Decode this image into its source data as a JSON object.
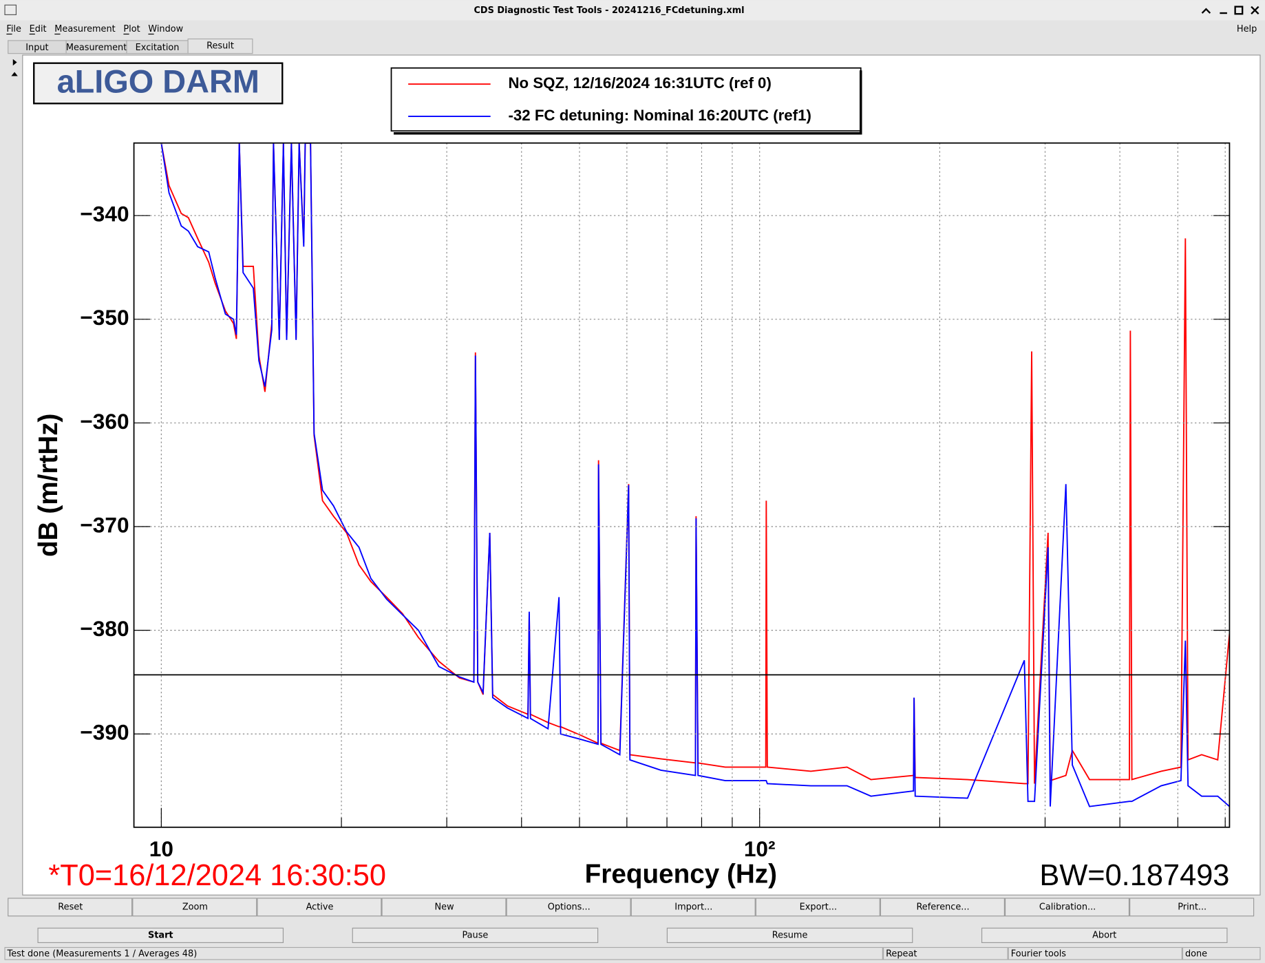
{
  "window": {
    "title": "CDS Diagnostic Test Tools - 20241216_FCdetuning.xml",
    "menus": [
      "File",
      "Edit",
      "Measurement",
      "Plot",
      "Window"
    ],
    "help": "Help",
    "tabs": [
      "Input",
      "Measurement",
      "Excitation",
      "Result"
    ],
    "buttons": [
      "Reset",
      "Zoom",
      "Active",
      "New",
      "Options...",
      "Import...",
      "Export...",
      "Reference...",
      "Calibration...",
      "Print..."
    ],
    "controls": [
      "Start",
      "Pause",
      "Resume",
      "Abort"
    ],
    "status": [
      "Test done (Measurements 1 / Averages 48)",
      "Repeat",
      "Fourier tools",
      "done"
    ]
  },
  "chart_data": {
    "type": "line",
    "title": "aLIGO DARM",
    "x_label": "Frequency (Hz)",
    "y_label": "dB (m/rtHz)",
    "annotations": [
      "*T0=16/12/2024 16:30:50",
      "BW=0.187493"
    ],
    "log_x": true,
    "grid": true,
    "xlim": [
      9,
      610
    ],
    "ylim": [
      -399,
      -333
    ],
    "xticks": [
      10,
      {
        "value": 100,
        "label": "10²"
      }
    ],
    "xminor": [
      20,
      30,
      40,
      50,
      60,
      70,
      80,
      90,
      200,
      300,
      400,
      500,
      600
    ],
    "yticks": [
      {
        "value": -340,
        "label": "−340"
      },
      {
        "value": -350,
        "label": "−350"
      },
      {
        "value": -360,
        "label": "−360"
      },
      {
        "value": -370,
        "label": "−370"
      },
      {
        "value": -380,
        "label": "−380"
      },
      {
        "value": -390,
        "label": "−390"
      }
    ],
    "hline": -384.3,
    "x": [
      10,
      10.3,
      10.8,
      11.1,
      11.5,
      12.0,
      12.3,
      12.8,
      13.2,
      13.35,
      13.5,
      13.7,
      14.25,
      14.56,
      14.9,
      15.3,
      15.4,
      15.75,
      16.0,
      16.2,
      16.5,
      16.8,
      17.0,
      17.3,
      17.4,
      17.76,
      18.0,
      18.6,
      19.4,
      20.4,
      21.4,
      22.4,
      23.8,
      25.3,
      26.9,
      29.1,
      31.5,
      33.3,
      33.5,
      33.8,
      34.5,
      35.4,
      35.8,
      37.9,
      41.0,
      41.2,
      41.4,
      44.3,
      46.2,
      46.5,
      50.1,
      53.7,
      53.8,
      54.3,
      58.4,
      60.4,
      60.7,
      68.4,
      78.1,
      78.3,
      78.9,
      87.6,
      102.4,
      102.6,
      103,
      121.8,
      140,
      153.5,
      180.8,
      181.2,
      182,
      222.6,
      277,
      280.9,
      284.9,
      288,
      303.4,
      306,
      325,
      333.2,
      356,
      415,
      416.5,
      419,
      469,
      506,
      514.7,
      520,
      548,
      583,
      610
    ],
    "series": [
      {
        "name": "No SQZ, 12/16/2024 16:31UTC (ref 0)",
        "color": "#ff0000",
        "values": [
          -333,
          -337.1,
          -339.8,
          -340.2,
          -342.2,
          -344.5,
          -346.5,
          -349.2,
          -350.4,
          -351.9,
          -333,
          -344.9,
          -344.9,
          -353.5,
          -357,
          -350.4,
          -333,
          -351.9,
          -333,
          -351.9,
          -333,
          -351.9,
          -333,
          -342.6,
          -333,
          -333,
          -361.2,
          -367.5,
          -369,
          -370.6,
          -373.7,
          -375.3,
          -376.8,
          -378.4,
          -380.7,
          -383,
          -384.6,
          -385,
          -353.2,
          -385,
          -386.2,
          -370.6,
          -386.2,
          -387.3,
          -388.1,
          -378.4,
          -388.1,
          -388.9,
          -389.3,
          -389.3,
          -390.1,
          -390.9,
          -363.6,
          -390.9,
          -391.6,
          -365.9,
          -392,
          -392.4,
          -392.8,
          -369,
          -392.8,
          -393.2,
          -393.2,
          -367.5,
          -393.2,
          -393.6,
          -393.2,
          -394.4,
          -394,
          -386.5,
          -394.2,
          -394.4,
          -394.8,
          -394.8,
          -353.1,
          -394.8,
          -370.6,
          -394.5,
          -394,
          -391.6,
          -394.4,
          -394.4,
          -351.1,
          -394.4,
          -393.6,
          -393.2,
          -342.2,
          -392.5,
          -392,
          -392.5,
          -380.3
        ]
      },
      {
        "name": "-32 FC detuning: Nominal 16:20UTC  (ref1)",
        "color": "#0000ff",
        "values": [
          -333,
          -337.8,
          -341,
          -341.5,
          -343,
          -343.5,
          -346,
          -349.5,
          -350,
          -351.5,
          -333,
          -345.5,
          -347,
          -354,
          -356.5,
          -351,
          -333,
          -352,
          -333,
          -352,
          -333,
          -352,
          -333,
          -343,
          -333,
          -333,
          -361,
          -366.5,
          -368,
          -370.5,
          -372,
          -375,
          -377,
          -378.5,
          -380,
          -383.5,
          -384.5,
          -385,
          -353.5,
          -385,
          -386,
          -370.6,
          -386.5,
          -387.5,
          -388.5,
          -378.2,
          -388.5,
          -389.5,
          -376.8,
          -390,
          -390.5,
          -391,
          -364,
          -391,
          -392,
          -366,
          -392.5,
          -393.5,
          -394,
          -369.2,
          -394,
          -394.5,
          -394.5,
          -394.5,
          -394.8,
          -395,
          -395,
          -396,
          -395.5,
          -386.5,
          -396,
          -396.2,
          -382.9,
          -396.5,
          -396.5,
          -396.5,
          -372,
          -397,
          -365.9,
          -393,
          -397,
          -396.5,
          -396.5,
          -396.5,
          -395,
          -394.5,
          -381,
          -395,
          -396,
          -396,
          -397
        ]
      }
    ]
  }
}
